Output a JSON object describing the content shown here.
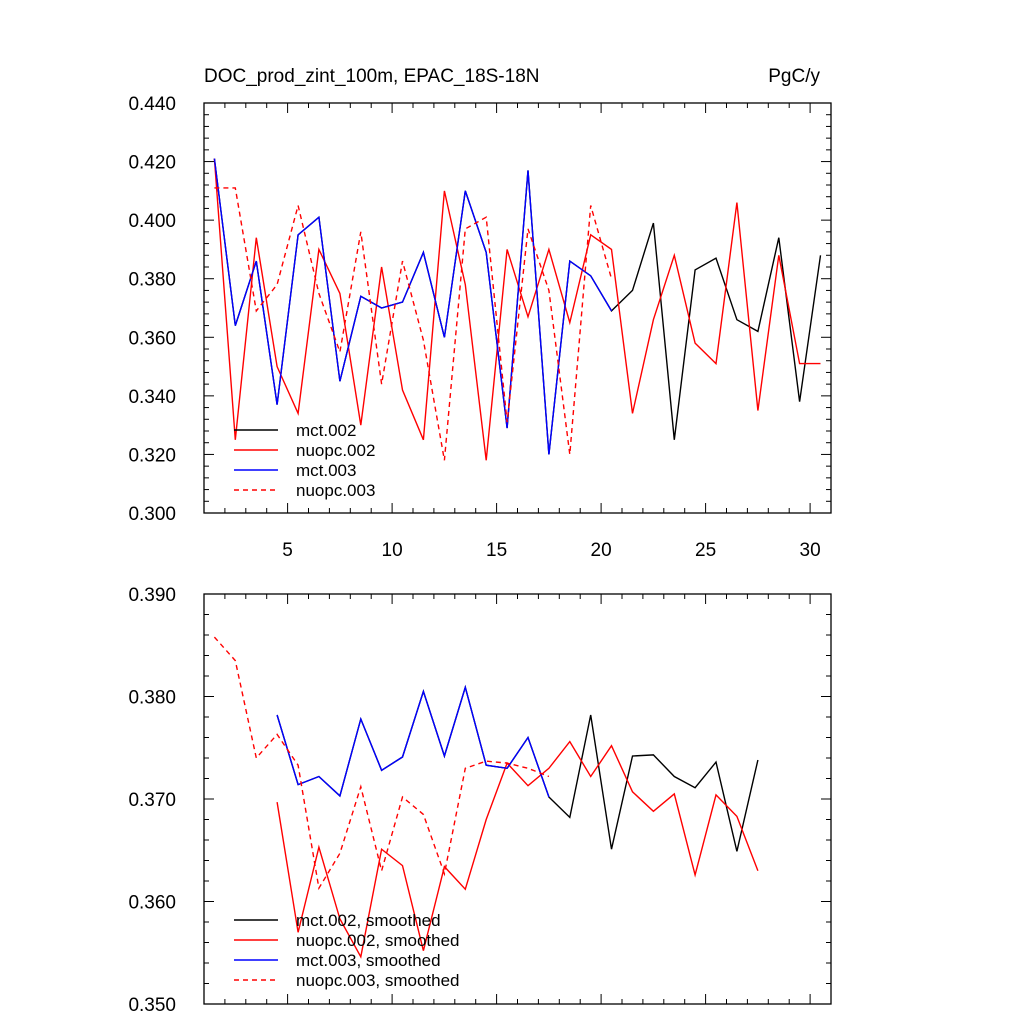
{
  "chart_data": [
    {
      "type": "line",
      "title": "DOC_prod_zint_100m, EPAC_18S-18N",
      "units": "PgC/y",
      "xlabel": "",
      "ylabel": "",
      "xlim": [
        1,
        31
      ],
      "ylim": [
        0.3,
        0.44
      ],
      "x_ticks": [
        5,
        10,
        15,
        20,
        25,
        30
      ],
      "x_tick_labels": [
        "5",
        "10",
        "15",
        "20",
        "25",
        "30"
      ],
      "y_ticks": [
        0.3,
        0.32,
        0.34,
        0.36,
        0.38,
        0.4,
        0.42,
        0.44
      ],
      "y_tick_labels": [
        "0.300",
        "0.320",
        "0.340",
        "0.360",
        "0.380",
        "0.400",
        "0.420",
        "0.440"
      ],
      "legend_position": "bottom-left",
      "series": [
        {
          "name": "mct.002",
          "color": "#000000",
          "dash": "solid",
          "x": [
            1.5,
            2.5,
            3.5,
            4.5,
            5.5,
            6.5,
            7.5,
            8.5,
            9.5,
            10.5,
            11.5,
            12.5,
            13.5,
            14.5,
            15.5,
            16.5,
            17.5,
            18.5,
            19.5,
            20.5,
            21.5,
            22.5,
            23.5,
            24.5,
            25.5,
            26.5,
            27.5,
            28.5,
            29.5,
            30.5
          ],
          "values": [
            0.421,
            0.364,
            0.386,
            0.337,
            0.395,
            0.401,
            0.345,
            0.374,
            0.37,
            0.372,
            0.389,
            0.36,
            0.41,
            0.389,
            0.329,
            0.417,
            0.32,
            0.386,
            0.381,
            0.369,
            0.376,
            0.399,
            0.325,
            0.383,
            0.387,
            0.366,
            0.362,
            0.394,
            0.338,
            0.388
          ]
        },
        {
          "name": "nuopc.002",
          "color": "#ff0000",
          "dash": "solid",
          "x": [
            1.5,
            2.5,
            3.5,
            4.5,
            5.5,
            6.5,
            7.5,
            8.5,
            9.5,
            10.5,
            11.5,
            12.5,
            13.5,
            14.5,
            15.5,
            16.5,
            17.5,
            18.5,
            19.5,
            20.5,
            21.5,
            22.5,
            23.5,
            24.5,
            25.5,
            26.5,
            27.5,
            28.5,
            29.5,
            30.5
          ],
          "values": [
            0.421,
            0.325,
            0.394,
            0.35,
            0.334,
            0.39,
            0.375,
            0.33,
            0.384,
            0.342,
            0.325,
            0.41,
            0.378,
            0.318,
            0.39,
            0.367,
            0.39,
            0.365,
            0.395,
            0.39,
            0.334,
            0.366,
            0.388,
            0.358,
            0.351,
            0.406,
            0.335,
            0.388,
            0.351,
            0.351
          ]
        },
        {
          "name": "mct.003",
          "color": "#0000ff",
          "dash": "solid",
          "x": [
            1.5,
            2.5,
            3.5,
            4.5,
            5.5,
            6.5,
            7.5,
            8.5,
            9.5,
            10.5,
            11.5,
            12.5,
            13.5,
            14.5,
            15.5,
            16.5,
            17.5,
            18.5,
            19.5,
            20.5
          ],
          "values": [
            0.421,
            0.364,
            0.386,
            0.337,
            0.395,
            0.401,
            0.345,
            0.374,
            0.37,
            0.372,
            0.389,
            0.36,
            0.41,
            0.389,
            0.329,
            0.417,
            0.32,
            0.386,
            0.381,
            0.369
          ]
        },
        {
          "name": "nuopc.003",
          "color": "#ff0000",
          "dash": "dashed",
          "x": [
            1.5,
            2.5,
            3.5,
            4.5,
            5.5,
            6.5,
            7.5,
            8.5,
            9.5,
            10.5,
            11.5,
            12.5,
            13.5,
            14.5,
            15.5,
            16.5,
            17.5,
            18.5,
            19.5,
            20.5
          ],
          "values": [
            0.411,
            0.411,
            0.369,
            0.378,
            0.405,
            0.375,
            0.355,
            0.396,
            0.344,
            0.386,
            0.359,
            0.318,
            0.397,
            0.401,
            0.331,
            0.397,
            0.376,
            0.32,
            0.405,
            0.38
          ]
        }
      ]
    },
    {
      "type": "line",
      "title": "",
      "xlabel": "",
      "ylabel": "",
      "xlim": [
        1,
        31
      ],
      "ylim": [
        0.35,
        0.39
      ],
      "x_ticks": [
        5,
        10,
        15,
        20,
        25,
        30
      ],
      "x_tick_labels": [],
      "y_ticks": [
        0.35,
        0.36,
        0.37,
        0.38,
        0.39
      ],
      "y_tick_labels": [
        "0.350",
        "0.360",
        "0.370",
        "0.380",
        "0.390"
      ],
      "legend_position": "bottom-left",
      "series": [
        {
          "name": "mct.002, smoothed",
          "color": "#000000",
          "dash": "solid",
          "x": [
            4.5,
            5.5,
            6.5,
            7.5,
            8.5,
            9.5,
            10.5,
            11.5,
            12.5,
            13.5,
            14.5,
            15.5,
            16.5,
            17.5,
            18.5,
            19.5,
            20.5,
            21.5,
            22.5,
            23.5,
            24.5,
            25.5,
            26.5,
            27.5
          ],
          "values": [
            0.3782,
            0.3714,
            0.3722,
            0.3703,
            0.3778,
            0.3728,
            0.3741,
            0.3805,
            0.3742,
            0.3809,
            0.3733,
            0.373,
            0.376,
            0.3702,
            0.3682,
            0.3782,
            0.3651,
            0.3742,
            0.3743,
            0.3722,
            0.3711,
            0.3736,
            0.3649,
            0.3738
          ]
        },
        {
          "name": "nuopc.002, smoothed",
          "color": "#ff0000",
          "dash": "solid",
          "x": [
            4.5,
            5.5,
            6.5,
            7.5,
            8.5,
            9.5,
            10.5,
            11.5,
            12.5,
            13.5,
            14.5,
            15.5,
            16.5,
            17.5,
            18.5,
            19.5,
            20.5,
            21.5,
            22.5,
            23.5,
            24.5,
            25.5,
            26.5,
            27.5
          ],
          "values": [
            0.3697,
            0.357,
            0.3653,
            0.3583,
            0.3546,
            0.3651,
            0.3635,
            0.3552,
            0.3634,
            0.3612,
            0.368,
            0.3735,
            0.3713,
            0.373,
            0.3756,
            0.3722,
            0.3752,
            0.3707,
            0.3688,
            0.3705,
            0.3626,
            0.3704,
            0.3683,
            0.363
          ]
        },
        {
          "name": "mct.003, smoothed",
          "color": "#0000ff",
          "dash": "solid",
          "x": [
            4.5,
            5.5,
            6.5,
            7.5,
            8.5,
            9.5,
            10.5,
            11.5,
            12.5,
            13.5,
            14.5,
            15.5,
            16.5,
            17.5
          ],
          "values": [
            0.3782,
            0.3714,
            0.3722,
            0.3703,
            0.3778,
            0.3728,
            0.3741,
            0.3805,
            0.3742,
            0.3809,
            0.3733,
            0.373,
            0.376,
            0.3702
          ]
        },
        {
          "name": "nuopc.003, smoothed",
          "color": "#ff0000",
          "dash": "dashed",
          "x": [
            1.5,
            2.5,
            3.5,
            4.5,
            5.5,
            6.5,
            7.5,
            8.5,
            9.5,
            10.5,
            11.5,
            12.5,
            13.5,
            14.5,
            15.5,
            16.5,
            17.5
          ],
          "values": [
            0.3858,
            0.3835,
            0.374,
            0.3763,
            0.3733,
            0.3613,
            0.3647,
            0.3712,
            0.363,
            0.3702,
            0.3685,
            0.3627,
            0.373,
            0.3737,
            0.3735,
            0.373,
            0.3722
          ]
        }
      ]
    }
  ]
}
